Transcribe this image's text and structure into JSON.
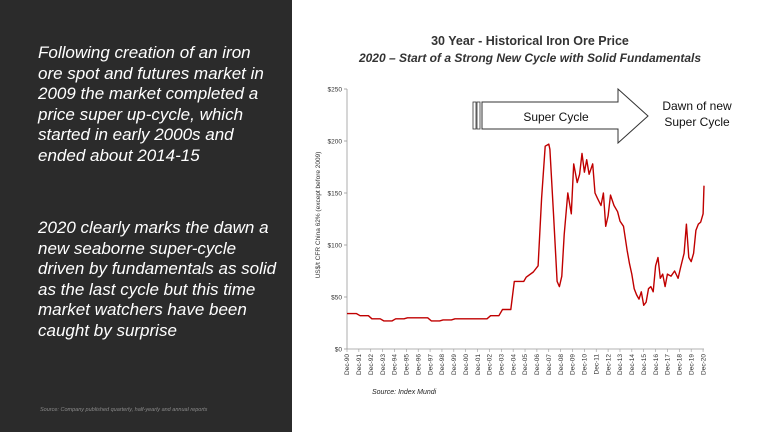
{
  "left_panel": {
    "paragraph1": "Following creation of an iron ore spot and futures market in 2009 the market completed a price super up-cycle, which started in early 2000s and ended about 2014-15",
    "paragraph2": "2020 clearly marks the dawn a new seaborne super-cycle driven by fundamentals as solid as the last cycle but this time market watchers have been caught by surprise",
    "footnote": "Source: Company published quarterly, half-yearly and annual reports"
  },
  "chart_data": {
    "type": "line",
    "title": "30 Year - Historical Iron Ore Price",
    "subtitle": "2020 – Start of a Strong New Cycle with Solid Fundamentals",
    "ylabel": "US$/t CFR China 62% (except before 2009)",
    "ylim": [
      0,
      250
    ],
    "yticks": [
      "$0",
      "$50",
      "$100",
      "$150",
      "$200",
      "$250"
    ],
    "grid": false,
    "categories": [
      "Dec-90",
      "Dec-91",
      "Dec-92",
      "Dec-93",
      "Dec-94",
      "Dec-95",
      "Dec-96",
      "Dec-97",
      "Dec-98",
      "Dec-99",
      "Dec-00",
      "Dec-01",
      "Dec-02",
      "Dec-03",
      "Dec-04",
      "Dec-05",
      "Dec-06",
      "Dec-07",
      "Dec-08",
      "Dec-09",
      "Dec-10",
      "Dec-11",
      "Dec-12",
      "Dec-13",
      "Dec-14",
      "Dec-15",
      "Dec-16",
      "Dec-17",
      "Dec-18",
      "Dec-19",
      "Dec-20"
    ],
    "series": [
      {
        "color": "#c00000",
        "x": [
          1990.9,
          1991.7,
          1992.0,
          1992.7,
          1993.0,
          1993.7,
          1994.0,
          1994.7,
          1995.0,
          1995.7,
          1996.0,
          1997.7,
          1998.0,
          1998.7,
          1999.0,
          1999.7,
          2000.0,
          2000.7,
          2001.0,
          2001.7,
          2002.0,
          2002.7,
          2003.0,
          2003.7,
          2004.0,
          2004.7,
          2005.0,
          2005.8,
          2006.0,
          2006.6,
          2007.0,
          2007.3,
          2007.6,
          2007.9,
          2008.0,
          2008.3,
          2008.6,
          2008.8,
          2009.0,
          2009.2,
          2009.5,
          2009.8,
          2010.0,
          2010.3,
          2010.5,
          2010.7,
          2010.9,
          2011.1,
          2011.3,
          2011.6,
          2011.8,
          2012.0,
          2012.3,
          2012.5,
          2012.7,
          2012.9,
          2013.1,
          2013.4,
          2013.7,
          2013.9,
          2014.2,
          2014.5,
          2014.7,
          2014.9,
          2015.1,
          2015.3,
          2015.5,
          2015.7,
          2015.9,
          2016.1,
          2016.3,
          2016.5,
          2016.7,
          2016.9,
          2017.1,
          2017.3,
          2017.5,
          2017.7,
          2017.9,
          2018.2,
          2018.5,
          2018.8,
          2019.0,
          2019.3,
          2019.5,
          2019.7,
          2019.9,
          2020.1,
          2020.3,
          2020.5,
          2020.7,
          2020.9,
          2020.98
        ],
        "y": [
          34,
          34,
          32,
          32,
          29,
          29,
          27,
          27,
          29,
          29,
          30,
          30,
          27,
          27,
          28,
          28,
          29,
          29,
          29,
          29,
          29,
          29,
          32,
          32,
          38,
          38,
          65,
          65,
          69,
          74,
          80,
          145,
          195,
          197,
          192,
          130,
          65,
          60,
          70,
          110,
          150,
          130,
          178,
          160,
          168,
          188,
          170,
          182,
          168,
          178,
          150,
          145,
          138,
          150,
          118,
          128,
          148,
          138,
          132,
          123,
          118,
          95,
          82,
          72,
          58,
          52,
          48,
          55,
          42,
          45,
          58,
          60,
          55,
          80,
          88,
          68,
          72,
          60,
          72,
          70,
          75,
          68,
          78,
          92,
          120,
          88,
          84,
          92,
          114,
          120,
          122,
          130,
          157
        ]
      }
    ],
    "annotations": {
      "arrow_label": "Super Cycle",
      "dawn_label": "Dawn of new Super Cycle"
    },
    "source": "Source: Index Mundi"
  }
}
